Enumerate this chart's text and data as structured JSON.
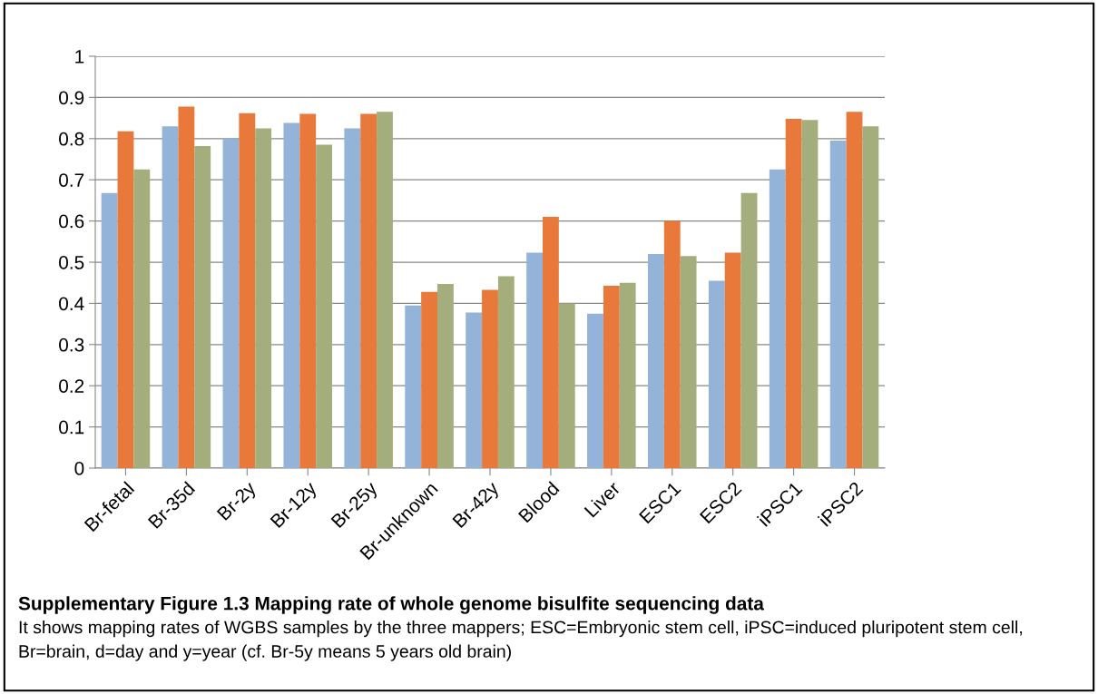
{
  "chart_data": {
    "type": "bar",
    "title": "Supplementary Figure 1.3 Mapping rate of whole genome bisulfite sequencing data",
    "categories": [
      "Br-fetal",
      "Br-35d",
      "Br-2y",
      "Br-12y",
      "Br-25y",
      "Br-unknown",
      "Br-42y",
      "Blood",
      "Liver",
      "ESC1",
      "ESC2",
      "iPSC1",
      "iPSC2"
    ],
    "series": [
      {
        "color": "#93b3d8",
        "values": [
          0.668,
          0.83,
          0.8,
          0.838,
          0.825,
          0.395,
          0.378,
          0.523,
          0.375,
          0.52,
          0.455,
          0.725,
          0.795
        ]
      },
      {
        "color": "#e8793a",
        "values": [
          0.818,
          0.878,
          0.862,
          0.86,
          0.86,
          0.428,
          0.433,
          0.61,
          0.443,
          0.6,
          0.523,
          0.848,
          0.865
        ]
      },
      {
        "color": "#a4ad7c",
        "values": [
          0.725,
          0.782,
          0.825,
          0.785,
          0.865,
          0.447,
          0.466,
          0.4,
          0.45,
          0.515,
          0.668,
          0.845,
          0.83
        ]
      }
    ],
    "ylim": [
      0,
      1
    ],
    "yticks": [
      0,
      0.1,
      0.2,
      0.3,
      0.4,
      0.5,
      0.6,
      0.7,
      0.8,
      0.9,
      1
    ],
    "grid": "y",
    "annotations": [
      "It shows mapping rates of WGBS samples by the three mappers; ESC=Embryonic stem cell, iPSC=induced pluripotent stem cell, Br=brain, d=day and y=year (cf. Br-5y means 5 years old brain)"
    ]
  }
}
